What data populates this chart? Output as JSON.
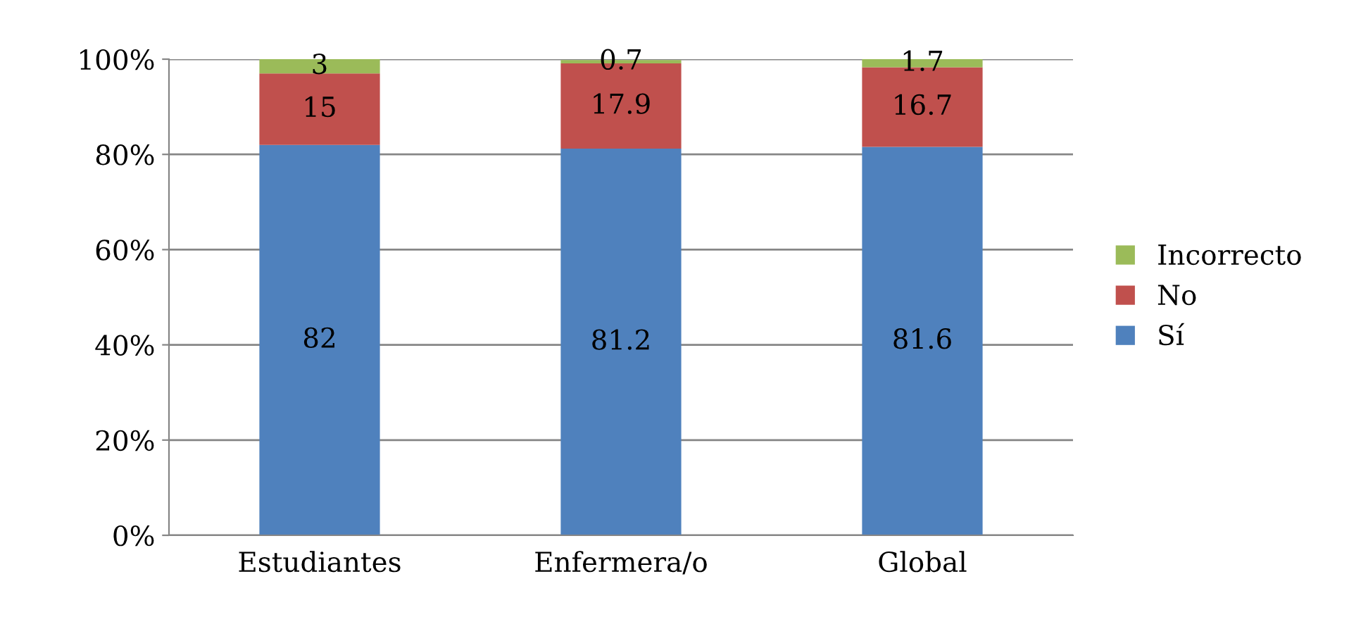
{
  "chart_data": {
    "type": "bar",
    "stacked": true,
    "categories": [
      "Estudiantes",
      "Enfermera/o",
      "Global"
    ],
    "series": [
      {
        "name": "Sí",
        "color": "#4f81bd",
        "values": [
          82,
          81.2,
          81.6
        ]
      },
      {
        "name": "No",
        "color": "#c0504d",
        "values": [
          15,
          17.9,
          16.7
        ]
      },
      {
        "name": "Incorrecto",
        "color": "#9bbb59",
        "values": [
          3,
          0.7,
          1.7
        ]
      }
    ],
    "ylim": [
      0,
      100
    ],
    "yticks": [
      {
        "value": 0,
        "label": "0%"
      },
      {
        "value": 20,
        "label": "20%"
      },
      {
        "value": 40,
        "label": "40%"
      },
      {
        "value": 60,
        "label": "60%"
      },
      {
        "value": 80,
        "label": "80%"
      },
      {
        "value": 100,
        "label": "100%"
      }
    ],
    "grid": "y",
    "legend": "right",
    "data_labels": true
  }
}
